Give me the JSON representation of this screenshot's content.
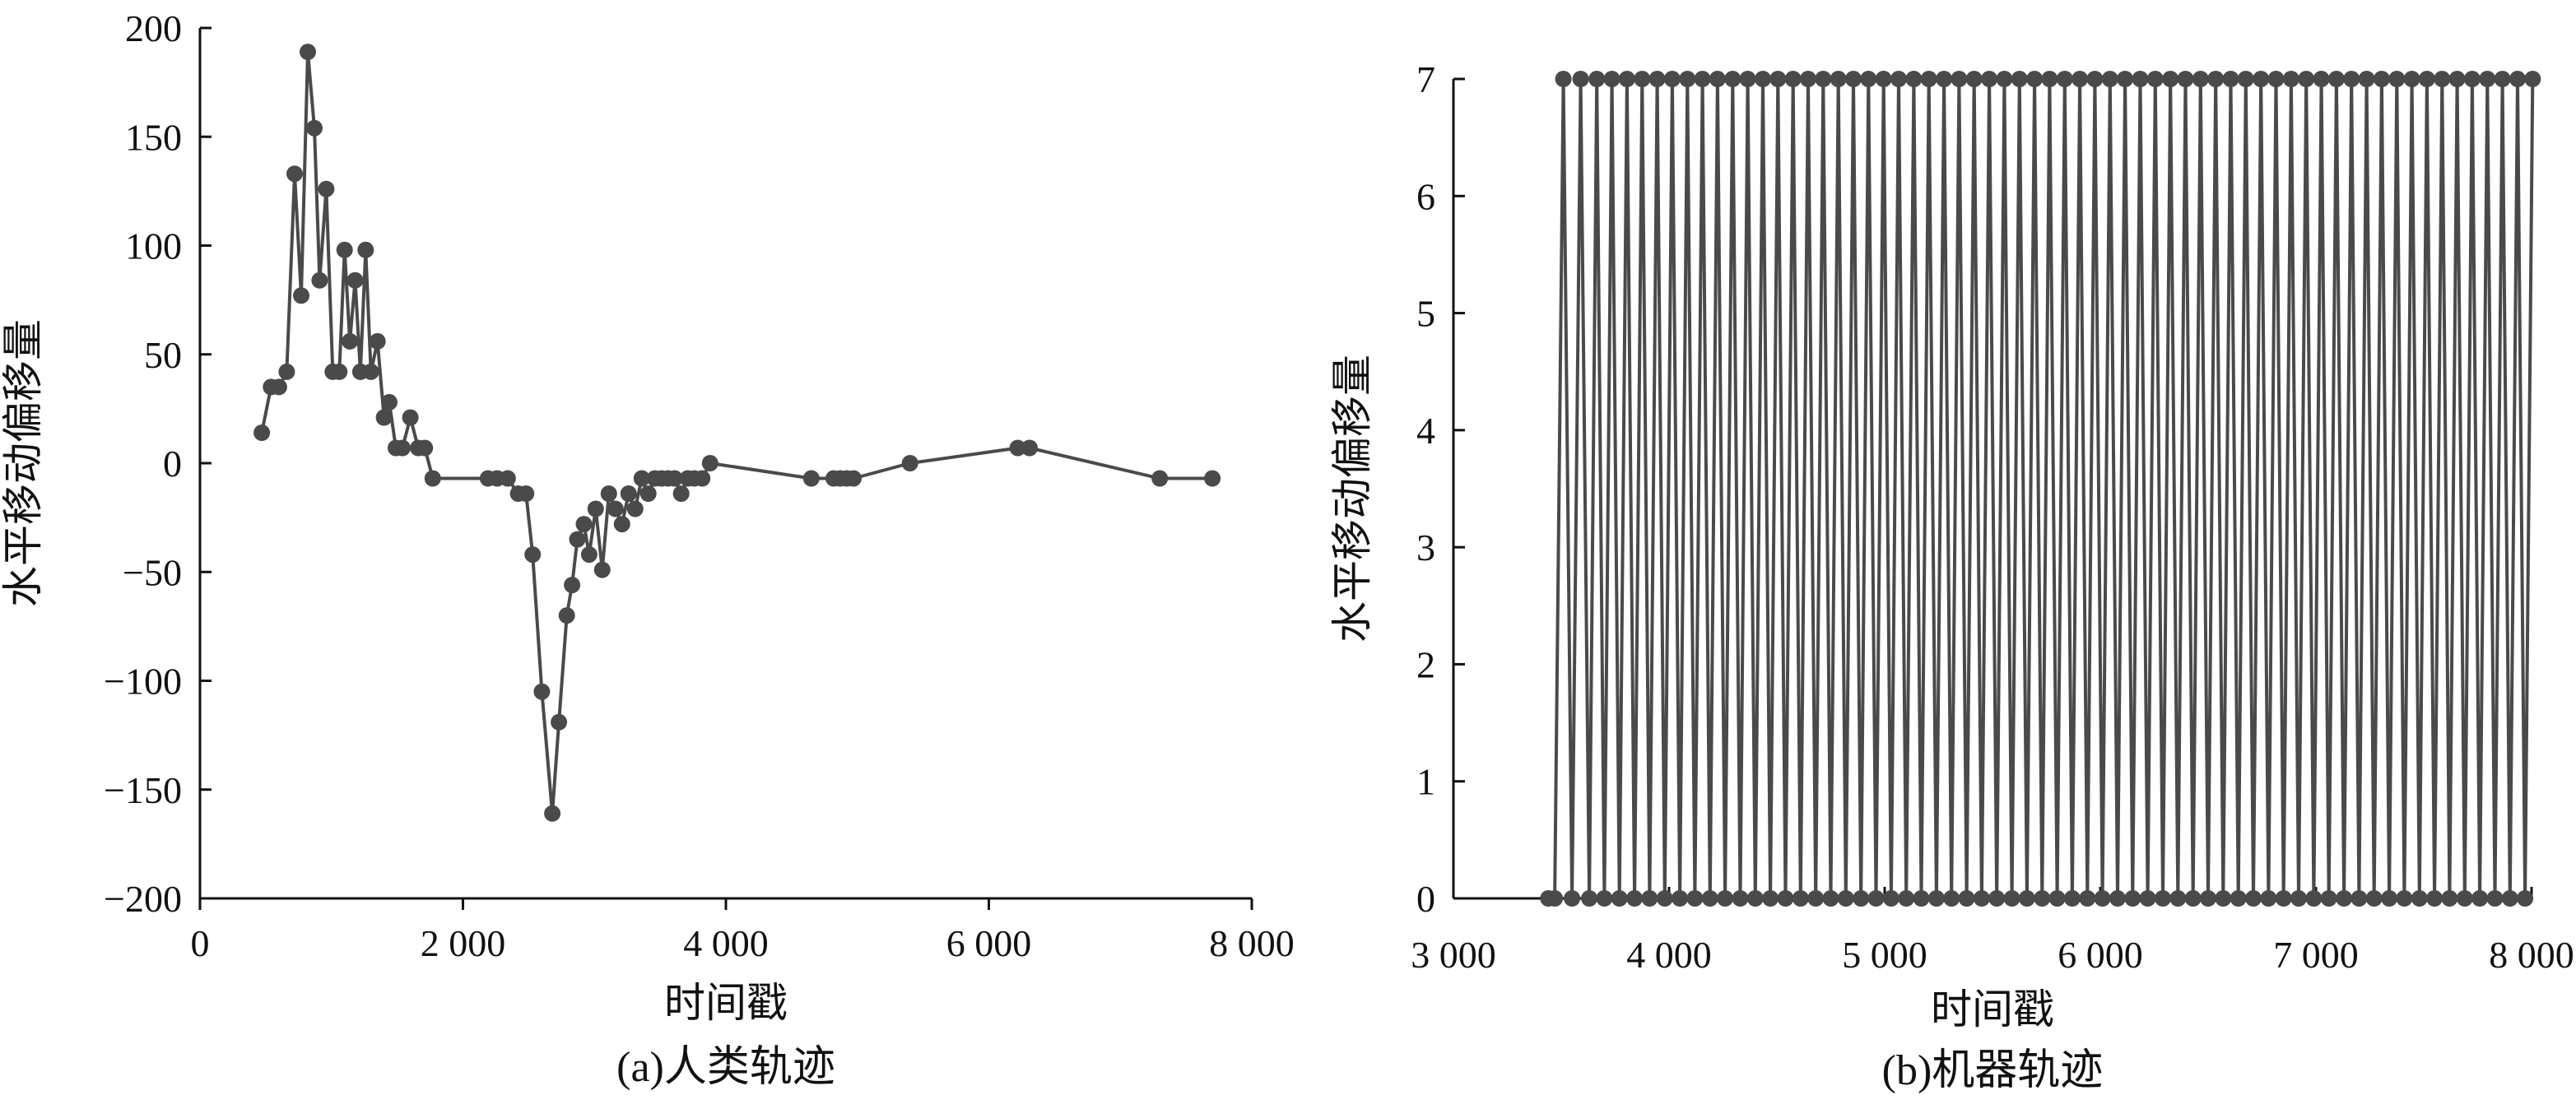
{
  "chart_data": [
    {
      "type": "line",
      "caption": "(a)人类轨迹",
      "xlabel": "时间戳",
      "ylabel": "水平移动偏移量",
      "xlim": [
        0,
        8000
      ],
      "ylim": [
        -200,
        200
      ],
      "xticks": [
        0,
        2000,
        4000,
        6000,
        8000
      ],
      "xtick_labels": [
        "0",
        "2 000",
        "4 000",
        "6 000",
        "8 000"
      ],
      "yticks": [
        -200,
        -150,
        -100,
        -50,
        0,
        50,
        100,
        150,
        200
      ],
      "ytick_labels": [
        "−200",
        "−150",
        "−100",
        "−50",
        "0",
        "50",
        "100",
        "150",
        "200"
      ],
      "grid": false,
      "color": "#4a4a4a",
      "series": [
        {
          "x": [
            470,
            540,
            600,
            660,
            720,
            770,
            820,
            870,
            910,
            960,
            1010,
            1060,
            1100,
            1140,
            1180,
            1220,
            1260,
            1300,
            1350,
            1400,
            1440,
            1490,
            1540,
            1600,
            1660,
            1710,
            1770,
            2190,
            2260,
            2340,
            2420,
            2480,
            2530,
            2600,
            2680,
            2730,
            2790,
            2830,
            2870,
            2920,
            2960,
            3010,
            3060,
            3110,
            3160,
            3210,
            3260,
            3310,
            3360,
            3410,
            3460,
            3510,
            3560,
            3610,
            3660,
            3710,
            3760,
            3820,
            3880,
            4650,
            4820,
            4870,
            4920,
            4970,
            5400,
            6220,
            6310,
            7300,
            7700
          ],
          "y": [
            14,
            35,
            35,
            42,
            133,
            77,
            189,
            154,
            84,
            126,
            42,
            42,
            98,
            56,
            84,
            42,
            98,
            42,
            56,
            21,
            28,
            7,
            7,
            21,
            7,
            7,
            -7,
            -7,
            -7,
            -7,
            -14,
            -14,
            -42,
            -105,
            -161,
            -119,
            -70,
            -56,
            -35,
            -28,
            -42,
            -21,
            -49,
            -14,
            -21,
            -28,
            -14,
            -21,
            -7,
            -14,
            -7,
            -7,
            -7,
            -7,
            -14,
            -7,
            -7,
            -7,
            0,
            -7,
            -7,
            -7,
            -7,
            -7,
            0,
            7,
            7,
            -7,
            -7
          ]
        }
      ]
    },
    {
      "type": "line",
      "caption": "(b)机器轨迹",
      "xlabel": "时间戳",
      "ylabel": "水平移动偏移量",
      "xlim": [
        3000,
        8000
      ],
      "ylim": [
        0,
        7
      ],
      "xticks": [
        3000,
        4000,
        5000,
        6000,
        7000,
        8000
      ],
      "xtick_labels": [
        "3 000",
        "4 000",
        "5 000",
        "6 000",
        "7 000",
        "8 000"
      ],
      "yticks": [
        0,
        1,
        2,
        3,
        4,
        5,
        6,
        7
      ],
      "ytick_labels": [
        "0",
        "1",
        "2",
        "3",
        "4",
        "5",
        "6",
        "7"
      ],
      "grid": false,
      "color": "#4a4a4a",
      "series": [
        {
          "x": [
            3440,
            3470,
            3510,
            3550,
            3590,
            3630,
            3665,
            3700,
            3735,
            3770,
            3805,
            3840,
            3875,
            3910,
            3945,
            3980,
            4015,
            4050,
            4085,
            4120,
            4155,
            4190,
            4225,
            4260,
            4295,
            4330,
            4365,
            4400,
            4435,
            4470,
            4505,
            4540,
            4575,
            4610,
            4645,
            4680,
            4715,
            4750,
            4785,
            4820,
            4855,
            4890,
            4925,
            4960,
            4995,
            5030,
            5065,
            5100,
            5135,
            5170,
            5205,
            5240,
            5275,
            5310,
            5345,
            5380,
            5415,
            5450,
            5485,
            5520,
            5555,
            5590,
            5625,
            5660,
            5695,
            5730,
            5765,
            5800,
            5835,
            5870,
            5905,
            5940,
            5975,
            6010,
            6045,
            6080,
            6115,
            6150,
            6185,
            6220,
            6255,
            6290,
            6325,
            6360,
            6395,
            6430,
            6465,
            6500,
            6535,
            6570,
            6605,
            6640,
            6675,
            6710,
            6745,
            6780,
            6815,
            6850,
            6885,
            6920,
            6955,
            6990,
            7025,
            7060,
            7095,
            7130,
            7165,
            7200,
            7235,
            7270,
            7305,
            7340,
            7375,
            7410,
            7445,
            7480,
            7515,
            7550,
            7585,
            7620,
            7655,
            7690,
            7725,
            7760,
            7795,
            7830,
            7865,
            7900,
            7935,
            7970,
            8005
          ],
          "y": [
            0,
            0,
            7,
            0,
            7,
            0,
            7,
            0,
            7,
            0,
            7,
            0,
            7,
            0,
            7,
            0,
            7,
            0,
            7,
            0,
            7,
            0,
            7,
            0,
            7,
            0,
            7,
            0,
            7,
            0,
            7,
            0,
            7,
            0,
            7,
            0,
            7,
            0,
            7,
            0,
            7,
            0,
            7,
            0,
            7,
            0,
            7,
            0,
            7,
            0,
            7,
            0,
            7,
            0,
            7,
            0,
            7,
            0,
            7,
            0,
            7,
            0,
            7,
            0,
            7,
            0,
            7,
            0,
            7,
            0,
            7,
            0,
            7,
            0,
            7,
            0,
            7,
            0,
            7,
            0,
            7,
            0,
            7,
            0,
            7,
            0,
            7,
            0,
            7,
            0,
            7,
            0,
            7,
            0,
            7,
            0,
            7,
            0,
            7,
            0,
            7,
            0,
            7,
            0,
            7,
            0,
            7,
            0,
            7,
            0,
            7,
            0,
            7,
            0,
            7,
            0,
            7,
            0,
            7,
            0,
            7,
            0,
            7,
            0,
            7,
            0,
            7,
            0,
            7,
            0,
            7
          ]
        }
      ]
    }
  ]
}
